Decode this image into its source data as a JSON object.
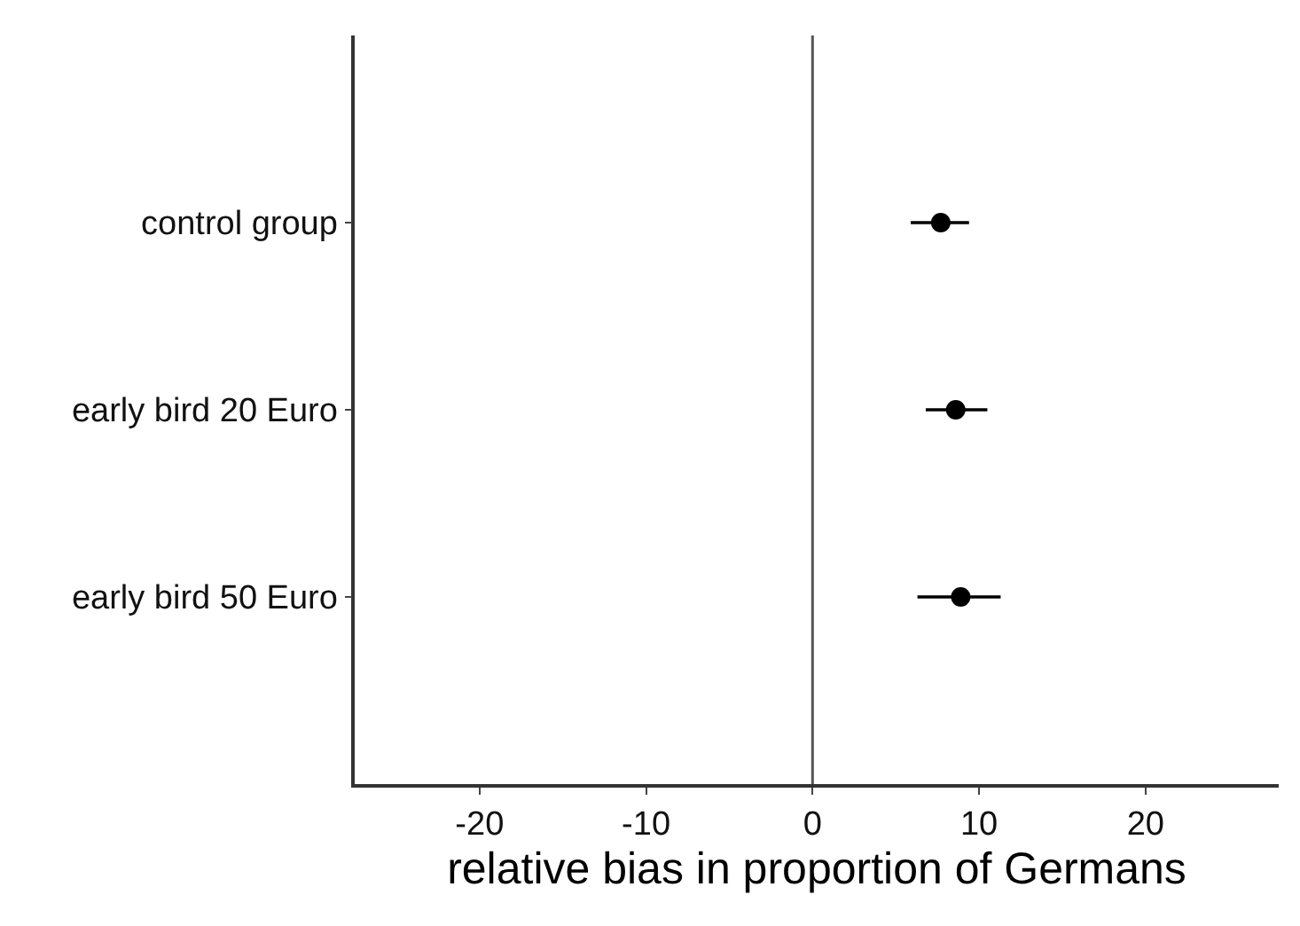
{
  "chart_data": {
    "type": "scatter",
    "orientation": "horizontal",
    "xlabel": "relative bias in proportion of Germans",
    "categories": [
      "control group",
      "early bird 20 Euro",
      "early bird 50 Euro"
    ],
    "values": [
      7.7,
      8.6,
      8.9
    ],
    "errors": [
      [
        5.9,
        9.4
      ],
      [
        6.8,
        10.5
      ],
      [
        6.3,
        11.3
      ]
    ],
    "color": "#000000",
    "marker": "circle",
    "xlim": [
      -27.5,
      28
    ],
    "xticks": [
      -20,
      -10,
      0,
      10,
      20
    ],
    "ref_lines": [
      {
        "axis": "x",
        "value": 0,
        "color": "#555555"
      }
    ],
    "grid": false,
    "legend": false
  }
}
